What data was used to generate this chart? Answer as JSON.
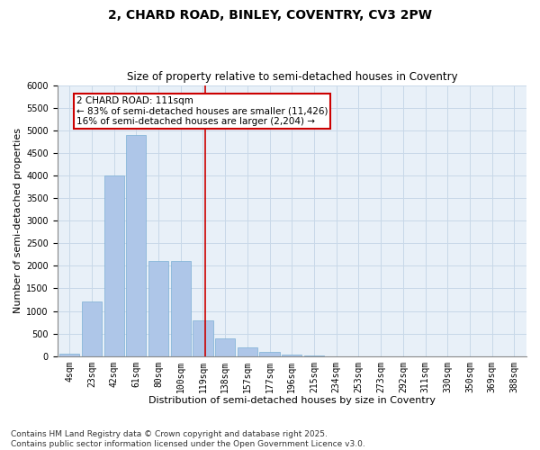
{
  "title1": "2, CHARD ROAD, BINLEY, COVENTRY, CV3 2PW",
  "title2": "Size of property relative to semi-detached houses in Coventry",
  "xlabel": "Distribution of semi-detached houses by size in Coventry",
  "ylabel": "Number of semi-detached properties",
  "bar_labels": [
    "4sqm",
    "23sqm",
    "42sqm",
    "61sqm",
    "80sqm",
    "100sqm",
    "119sqm",
    "138sqm",
    "157sqm",
    "177sqm",
    "196sqm",
    "215sqm",
    "234sqm",
    "253sqm",
    "273sqm",
    "292sqm",
    "311sqm",
    "330sqm",
    "350sqm",
    "369sqm",
    "388sqm"
  ],
  "bar_heights": [
    50,
    1200,
    4000,
    4900,
    2100,
    2100,
    800,
    400,
    200,
    100,
    30,
    5,
    0,
    0,
    0,
    0,
    0,
    0,
    0,
    0,
    0
  ],
  "bar_color": "#aec6e8",
  "bar_edge_color": "#7bafd4",
  "grid_color": "#c8d8e8",
  "background_color": "#e8f0f8",
  "vline_x": 6.11,
  "vline_color": "#cc0000",
  "annotation_text": "2 CHARD ROAD: 111sqm\n← 83% of semi-detached houses are smaller (11,426)\n16% of semi-detached houses are larger (2,204) →",
  "annotation_box_color": "#ffffff",
  "annotation_box_edge_color": "#cc0000",
  "ylim": [
    0,
    6000
  ],
  "yticks": [
    0,
    500,
    1000,
    1500,
    2000,
    2500,
    3000,
    3500,
    4000,
    4500,
    5000,
    5500,
    6000
  ],
  "footnote": "Contains HM Land Registry data © Crown copyright and database right 2025.\nContains public sector information licensed under the Open Government Licence v3.0.",
  "title_fontsize": 10,
  "subtitle_fontsize": 8.5,
  "axis_label_fontsize": 8,
  "tick_fontsize": 7,
  "footnote_fontsize": 6.5,
  "annotation_fontsize": 7.5
}
